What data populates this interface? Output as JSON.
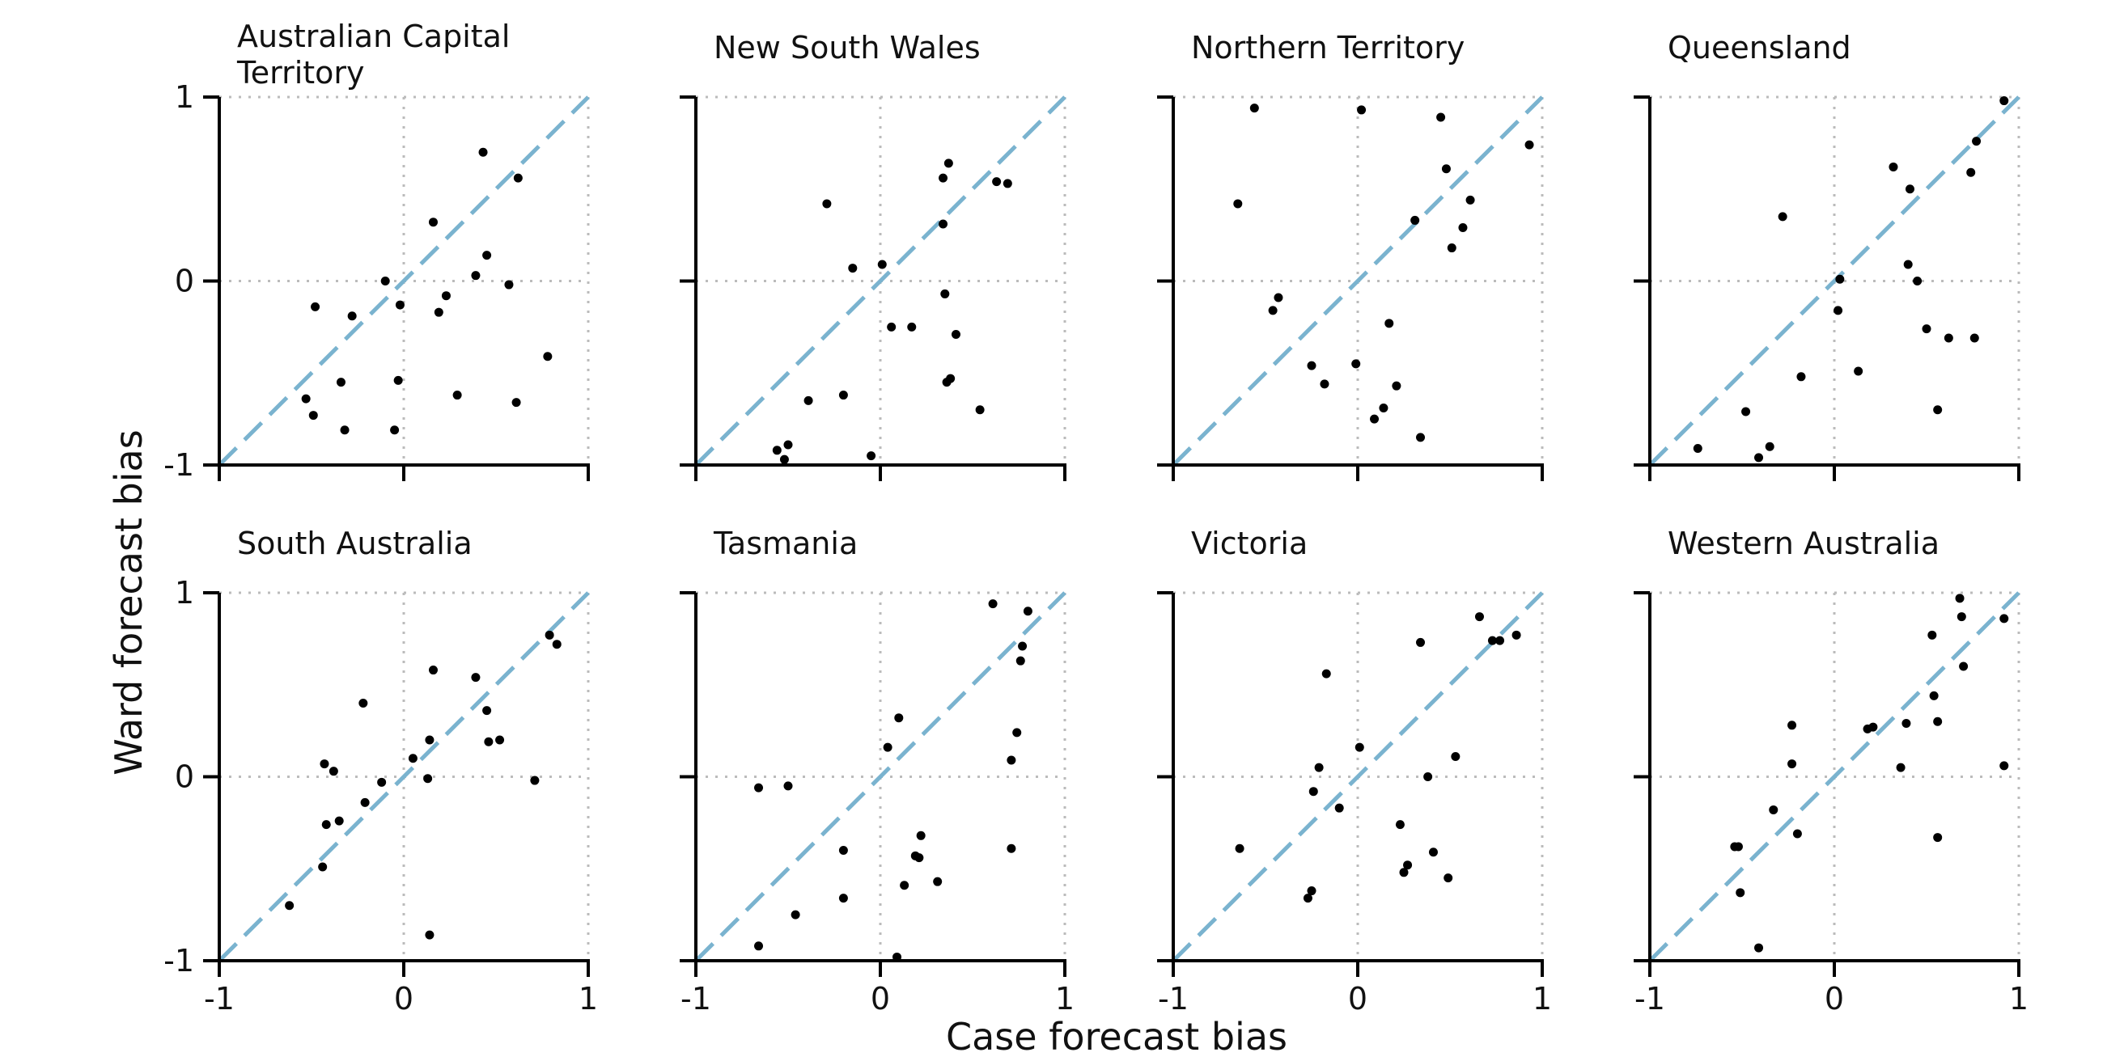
{
  "figure": {
    "xlabel": "Case forecast bias",
    "ylabel": "Ward forecast bias",
    "colors": {
      "points": "#000000",
      "identity_line": "#7ab3cf",
      "zero_lines": "#bbbbbb",
      "axes": "#000000"
    }
  },
  "chart_data": [
    {
      "type": "scatter",
      "title": "Australian Capital Territory",
      "title_lines": [
        "Australian Capital",
        "Territory"
      ],
      "xlim": [
        -1,
        1
      ],
      "ylim": [
        -1,
        1
      ],
      "xticks": [
        "-1",
        "0",
        "1"
      ],
      "yticks": [
        "-1",
        "0",
        "1"
      ],
      "reference_lines": [
        "y = x (dashed)",
        "x = 0 (dotted)",
        "y = 0 (dotted)"
      ],
      "points": [
        [
          -0.53,
          -0.64
        ],
        [
          -0.49,
          -0.73
        ],
        [
          -0.48,
          -0.14
        ],
        [
          -0.34,
          -0.55
        ],
        [
          -0.32,
          -0.81
        ],
        [
          -0.28,
          -0.19
        ],
        [
          -0.1,
          0.0
        ],
        [
          -0.05,
          -0.81
        ],
        [
          -0.03,
          -0.54
        ],
        [
          -0.02,
          -0.13
        ],
        [
          0.16,
          0.32
        ],
        [
          0.19,
          -0.17
        ],
        [
          0.23,
          -0.08
        ],
        [
          0.29,
          -0.62
        ],
        [
          0.39,
          0.03
        ],
        [
          0.43,
          0.7
        ],
        [
          0.45,
          0.14
        ],
        [
          0.57,
          -0.02
        ],
        [
          0.61,
          -0.66
        ],
        [
          0.62,
          0.56
        ],
        [
          0.78,
          -0.41
        ]
      ]
    },
    {
      "type": "scatter",
      "title": "New South Wales",
      "title_lines": [
        "New South Wales"
      ],
      "xlim": [
        -1,
        1
      ],
      "ylim": [
        -1,
        1
      ],
      "xticks": [
        "-1",
        "0",
        "1"
      ],
      "yticks": [
        "-1",
        "0",
        "1"
      ],
      "reference_lines": [
        "y = x (dashed)",
        "x = 0 (dotted)",
        "y = 0 (dotted)"
      ],
      "points": [
        [
          -0.56,
          -0.92
        ],
        [
          -0.52,
          -0.97
        ],
        [
          -0.5,
          -0.89
        ],
        [
          -0.39,
          -0.65
        ],
        [
          -0.29,
          0.42
        ],
        [
          -0.2,
          -0.62
        ],
        [
          -0.15,
          0.07
        ],
        [
          -0.05,
          -0.95
        ],
        [
          0.01,
          0.09
        ],
        [
          0.06,
          -0.25
        ],
        [
          0.17,
          -0.25
        ],
        [
          0.34,
          0.56
        ],
        [
          0.34,
          0.31
        ],
        [
          0.35,
          -0.07
        ],
        [
          0.36,
          -0.55
        ],
        [
          0.37,
          0.64
        ],
        [
          0.38,
          -0.53
        ],
        [
          0.41,
          -0.29
        ],
        [
          0.54,
          -0.7
        ],
        [
          0.63,
          0.54
        ],
        [
          0.69,
          0.53
        ]
      ]
    },
    {
      "type": "scatter",
      "title": "Northern Territory",
      "title_lines": [
        "Northern Territory"
      ],
      "xlim": [
        -1,
        1
      ],
      "ylim": [
        -1,
        1
      ],
      "xticks": [
        "-1",
        "0",
        "1"
      ],
      "yticks": [
        "-1",
        "0",
        "1"
      ],
      "reference_lines": [
        "y = x (dashed)",
        "x = 0 (dotted)",
        "y = 0 (dotted)"
      ],
      "points": [
        [
          -0.65,
          0.42
        ],
        [
          -0.56,
          0.94
        ],
        [
          -0.46,
          -0.16
        ],
        [
          -0.43,
          -0.09
        ],
        [
          -0.25,
          -0.46
        ],
        [
          -0.18,
          -0.56
        ],
        [
          -0.01,
          -0.45
        ],
        [
          0.02,
          0.93
        ],
        [
          0.09,
          -0.75
        ],
        [
          0.14,
          -0.69
        ],
        [
          0.17,
          -0.23
        ],
        [
          0.21,
          -0.57
        ],
        [
          0.31,
          0.33
        ],
        [
          0.34,
          -0.85
        ],
        [
          0.45,
          0.89
        ],
        [
          0.48,
          0.61
        ],
        [
          0.51,
          0.18
        ],
        [
          0.57,
          0.29
        ],
        [
          0.61,
          0.44
        ],
        [
          0.93,
          0.74
        ]
      ]
    },
    {
      "type": "scatter",
      "title": "Queensland",
      "title_lines": [
        "Queensland"
      ],
      "xlim": [
        -1,
        1
      ],
      "ylim": [
        -1,
        1
      ],
      "xticks": [
        "-1",
        "0",
        "1"
      ],
      "yticks": [
        "-1",
        "0",
        "1"
      ],
      "reference_lines": [
        "y = x (dashed)",
        "x = 0 (dotted)",
        "y = 0 (dotted)"
      ],
      "points": [
        [
          -0.74,
          -0.91
        ],
        [
          -0.48,
          -0.71
        ],
        [
          -0.41,
          -0.96
        ],
        [
          -0.35,
          -0.9
        ],
        [
          -0.28,
          0.35
        ],
        [
          -0.18,
          -0.52
        ],
        [
          0.02,
          -0.16
        ],
        [
          0.03,
          0.01
        ],
        [
          0.13,
          -0.49
        ],
        [
          0.32,
          0.62
        ],
        [
          0.4,
          0.09
        ],
        [
          0.41,
          0.5
        ],
        [
          0.45,
          0.0
        ],
        [
          0.5,
          -0.26
        ],
        [
          0.56,
          -0.7
        ],
        [
          0.62,
          -0.31
        ],
        [
          0.74,
          0.59
        ],
        [
          0.76,
          -0.31
        ],
        [
          0.77,
          0.76
        ],
        [
          0.92,
          0.98
        ]
      ]
    },
    {
      "type": "scatter",
      "title": "South Australia",
      "title_lines": [
        "South Australia"
      ],
      "xlim": [
        -1,
        1
      ],
      "ylim": [
        -1,
        1
      ],
      "xticks": [
        "-1",
        "0",
        "1"
      ],
      "yticks": [
        "-1",
        "0",
        "1"
      ],
      "reference_lines": [
        "y = x (dashed)",
        "x = 0 (dotted)",
        "y = 0 (dotted)"
      ],
      "points": [
        [
          -0.62,
          -0.7
        ],
        [
          -0.44,
          -0.49
        ],
        [
          -0.43,
          0.07
        ],
        [
          -0.42,
          -0.26
        ],
        [
          -0.38,
          0.03
        ],
        [
          -0.35,
          -0.24
        ],
        [
          -0.22,
          0.4
        ],
        [
          -0.21,
          -0.14
        ],
        [
          -0.12,
          -0.03
        ],
        [
          0.05,
          0.1
        ],
        [
          0.13,
          -0.01
        ],
        [
          0.14,
          0.2
        ],
        [
          0.14,
          -0.86
        ],
        [
          0.16,
          0.58
        ],
        [
          0.39,
          0.54
        ],
        [
          0.45,
          0.36
        ],
        [
          0.46,
          0.19
        ],
        [
          0.52,
          0.2
        ],
        [
          0.71,
          -0.02
        ],
        [
          0.79,
          0.77
        ],
        [
          0.83,
          0.72
        ]
      ]
    },
    {
      "type": "scatter",
      "title": "Tasmania",
      "title_lines": [
        "Tasmania"
      ],
      "xlim": [
        -1,
        1
      ],
      "ylim": [
        -1,
        1
      ],
      "xticks": [
        "-1",
        "0",
        "1"
      ],
      "yticks": [
        "-1",
        "0",
        "1"
      ],
      "reference_lines": [
        "y = x (dashed)",
        "x = 0 (dotted)",
        "y = 0 (dotted)"
      ],
      "points": [
        [
          -0.66,
          -0.06
        ],
        [
          -0.66,
          -0.92
        ],
        [
          -0.5,
          -0.05
        ],
        [
          -0.46,
          -0.75
        ],
        [
          -0.2,
          -0.4
        ],
        [
          -0.2,
          -0.66
        ],
        [
          0.04,
          0.16
        ],
        [
          0.1,
          0.32
        ],
        [
          0.09,
          -0.98
        ],
        [
          0.13,
          -0.59
        ],
        [
          0.19,
          -0.43
        ],
        [
          0.21,
          -0.44
        ],
        [
          0.22,
          -0.32
        ],
        [
          0.31,
          -0.57
        ],
        [
          0.61,
          0.94
        ],
        [
          0.71,
          0.09
        ],
        [
          0.71,
          -0.39
        ],
        [
          0.74,
          0.24
        ],
        [
          0.76,
          0.63
        ],
        [
          0.77,
          0.71
        ],
        [
          0.8,
          0.9
        ]
      ]
    },
    {
      "type": "scatter",
      "title": "Victoria",
      "title_lines": [
        "Victoria"
      ],
      "xlim": [
        -1,
        1
      ],
      "ylim": [
        -1,
        1
      ],
      "xticks": [
        "-1",
        "0",
        "1"
      ],
      "yticks": [
        "-1",
        "0",
        "1"
      ],
      "reference_lines": [
        "y = x (dashed)",
        "x = 0 (dotted)",
        "y = 0 (dotted)"
      ],
      "points": [
        [
          -0.64,
          -0.39
        ],
        [
          -0.27,
          -0.66
        ],
        [
          -0.25,
          -0.62
        ],
        [
          -0.24,
          -0.08
        ],
        [
          -0.21,
          0.05
        ],
        [
          -0.17,
          0.56
        ],
        [
          -0.1,
          -0.17
        ],
        [
          0.01,
          0.16
        ],
        [
          0.23,
          -0.26
        ],
        [
          0.25,
          -0.52
        ],
        [
          0.27,
          -0.48
        ],
        [
          0.34,
          0.73
        ],
        [
          0.38,
          0.0
        ],
        [
          0.41,
          -0.41
        ],
        [
          0.49,
          -0.55
        ],
        [
          0.53,
          0.11
        ],
        [
          0.66,
          0.87
        ],
        [
          0.73,
          0.74
        ],
        [
          0.77,
          0.74
        ],
        [
          0.86,
          0.77
        ]
      ]
    },
    {
      "type": "scatter",
      "title": "Western Australia",
      "title_lines": [
        "Western Australia"
      ],
      "xlim": [
        -1,
        1
      ],
      "ylim": [
        -1,
        1
      ],
      "xticks": [
        "-1",
        "0",
        "1"
      ],
      "yticks": [
        "-1",
        "0",
        "1"
      ],
      "reference_lines": [
        "y = x (dashed)",
        "x = 0 (dotted)",
        "y = 0 (dotted)"
      ],
      "points": [
        [
          -0.54,
          -0.38
        ],
        [
          -0.52,
          -0.38
        ],
        [
          -0.51,
          -0.63
        ],
        [
          -0.41,
          -0.93
        ],
        [
          -0.33,
          -0.18
        ],
        [
          -0.23,
          0.28
        ],
        [
          -0.23,
          0.07
        ],
        [
          -0.2,
          -0.31
        ],
        [
          0.18,
          0.26
        ],
        [
          0.21,
          0.27
        ],
        [
          0.36,
          0.05
        ],
        [
          0.39,
          0.29
        ],
        [
          0.53,
          0.77
        ],
        [
          0.54,
          0.44
        ],
        [
          0.56,
          0.3
        ],
        [
          0.56,
          -0.33
        ],
        [
          0.68,
          0.97
        ],
        [
          0.69,
          0.87
        ],
        [
          0.7,
          0.6
        ],
        [
          0.92,
          0.86
        ],
        [
          0.92,
          0.06
        ]
      ]
    }
  ]
}
